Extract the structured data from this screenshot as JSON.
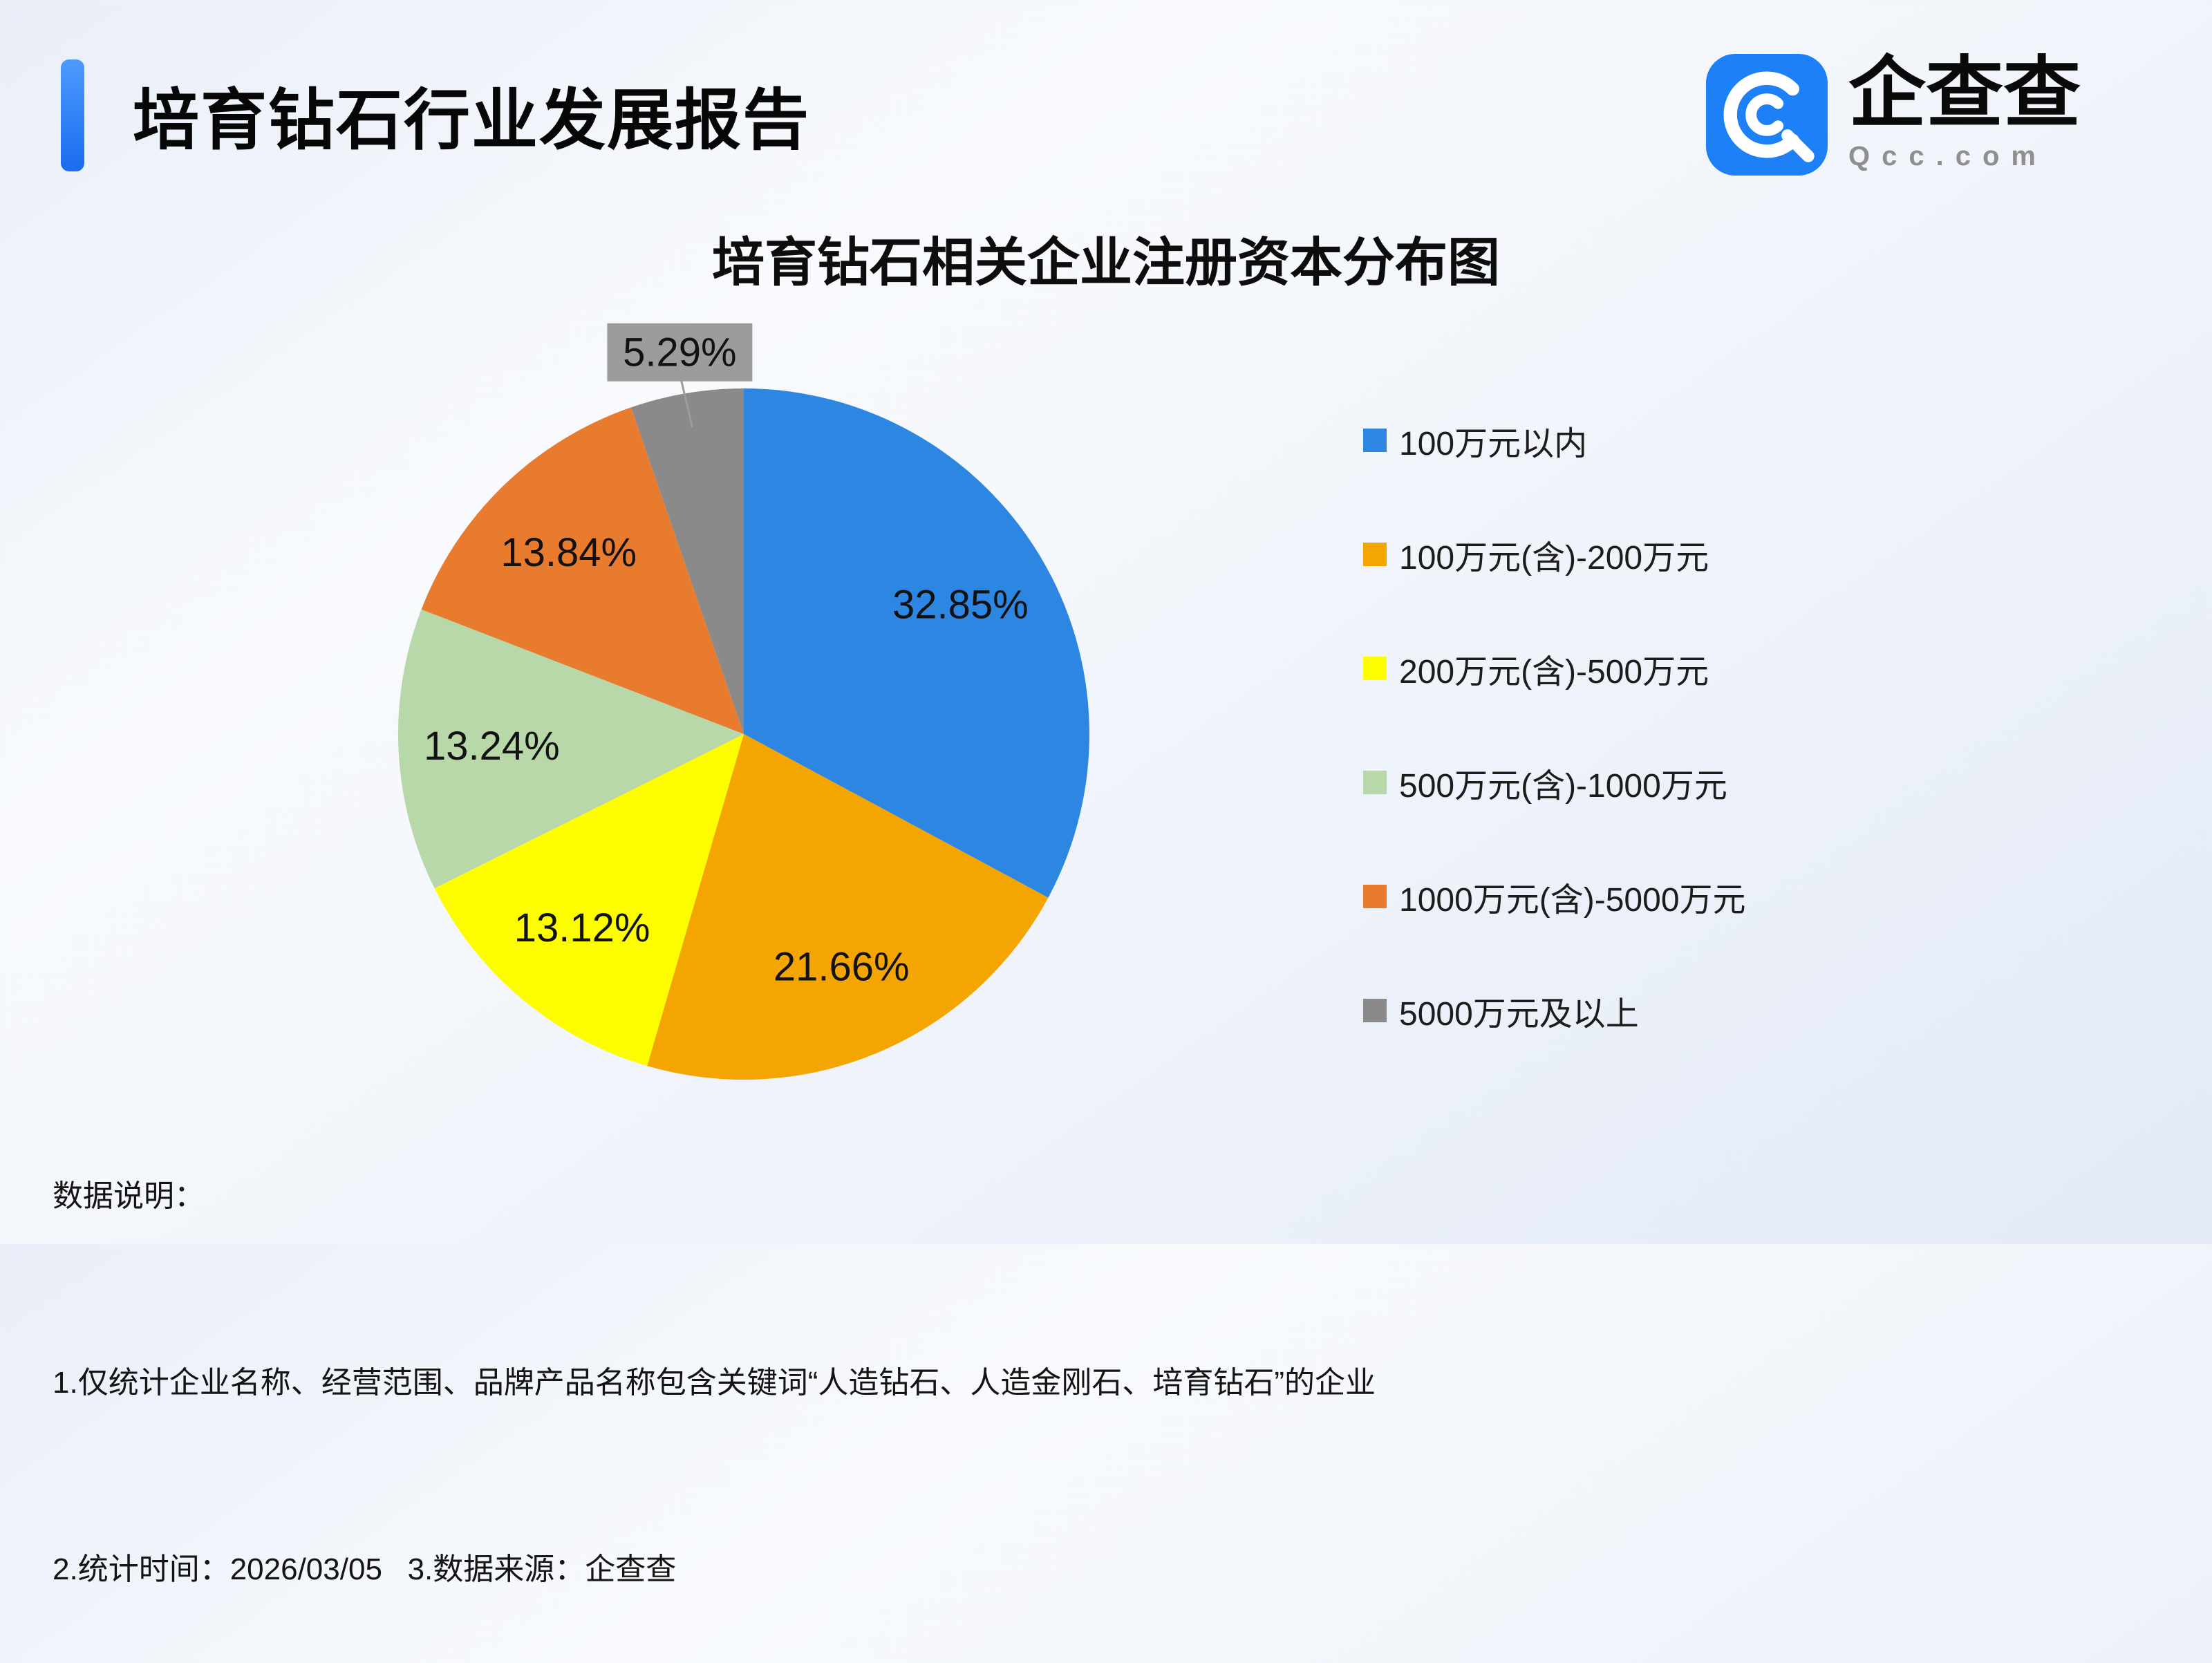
{
  "header": {
    "title": "培育钻石行业发展报告",
    "accent_color": "#1b6cf0"
  },
  "logo": {
    "brand_name": "企查查",
    "domain": "Qcc.com",
    "brand_color": "#1d80f6"
  },
  "chart_data": {
    "type": "pie",
    "title": "培育钻石相关企业注册资本分布图",
    "unit": "%",
    "direction": "clockwise",
    "start_angle_deg": 0,
    "legend_position": "right",
    "callout_bg": "#9c9c9c",
    "segments": [
      {
        "label": "100万元以内",
        "value": 32.85,
        "display": "32.85%",
        "color": "#2d87e2",
        "callout": false
      },
      {
        "label": "100万元(含)-200万元",
        "value": 21.66,
        "display": "21.66%",
        "color": "#f5a502",
        "callout": false
      },
      {
        "label": "200万元(含)-500万元",
        "value": 13.12,
        "display": "13.12%",
        "color": "#fdfd00",
        "callout": false
      },
      {
        "label": "500万元(含)-1000万元",
        "value": 13.24,
        "display": "13.24%",
        "color": "#b8d8a9",
        "callout": false
      },
      {
        "label": "1000万元(含)-5000万元",
        "value": 13.84,
        "display": "13.84%",
        "color": "#e87b2e",
        "callout": false
      },
      {
        "label": "5000万元及以上",
        "value": 5.29,
        "display": "5.29%",
        "color": "#8a8a8a",
        "callout": true
      }
    ]
  },
  "footer": {
    "heading": "数据说明：",
    "line1": "1.仅统计企业名称、经营范围、品牌产品名称包含关键词“人造钻石、人造金刚石、培育钻石”的企业",
    "line2": "2.统计时间：2026/03/05   3.数据来源：企查查"
  }
}
